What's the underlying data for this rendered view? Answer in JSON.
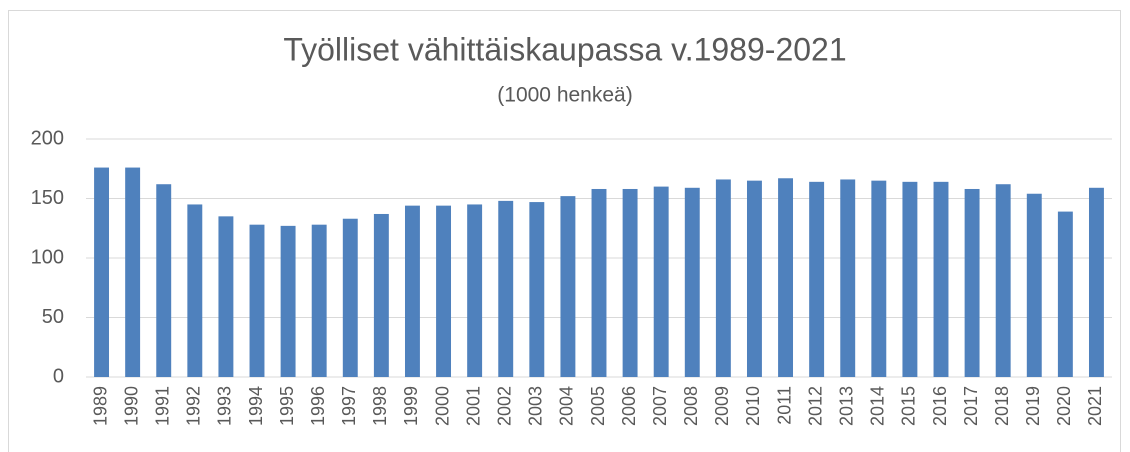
{
  "chart_data": {
    "type": "bar",
    "title": "Työlliset vähittäiskaupassa v.1989-2021",
    "subtitle": "(1000 henkeä)",
    "categories": [
      "1989",
      "1990",
      "1991",
      "1992",
      "1993",
      "1994",
      "1995",
      "1996",
      "1997",
      "1998",
      "1999",
      "2000",
      "2001",
      "2002",
      "2003",
      "2004",
      "2005",
      "2006",
      "2007",
      "2008",
      "2009",
      "2010",
      "2011",
      "2012",
      "2013",
      "2014",
      "2015",
      "2016",
      "2017",
      "2018",
      "2019",
      "2020",
      "2021"
    ],
    "values": [
      176,
      176,
      162,
      145,
      135,
      128,
      127,
      128,
      133,
      137,
      144,
      144,
      145,
      148,
      147,
      152,
      158,
      158,
      160,
      159,
      166,
      165,
      167,
      164,
      166,
      165,
      164,
      164,
      158,
      162,
      154,
      139,
      159
    ],
    "color": "#4f81bd",
    "ylim": [
      0,
      200
    ],
    "yticks": [
      0,
      50,
      100,
      150,
      200
    ],
    "grid": true
  }
}
